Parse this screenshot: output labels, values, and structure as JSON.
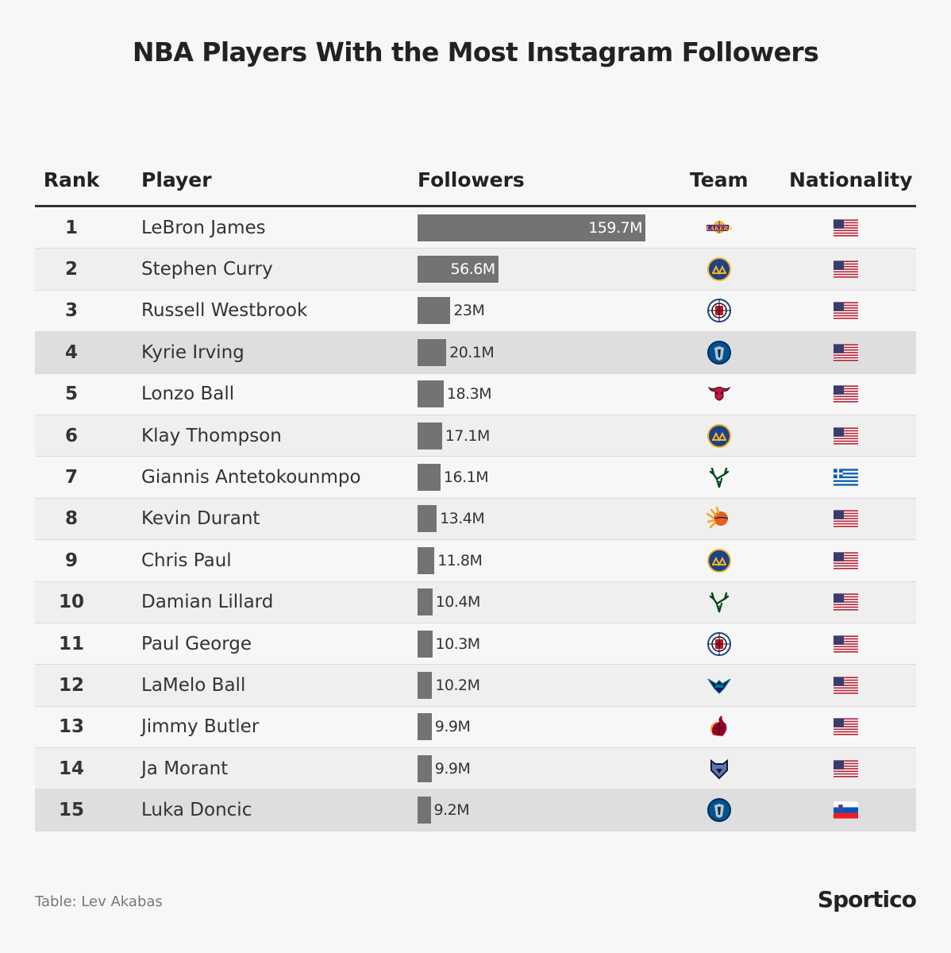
{
  "title": "NBA Players With the Most Instagram Followers",
  "headers": {
    "rank": "Rank",
    "player": "Player",
    "followers": "Followers",
    "team": "Team",
    "nationality": "Nationality"
  },
  "footer": {
    "credit": "Table: Lev Akabas",
    "brand": "Sportico"
  },
  "chart_data": {
    "type": "table",
    "title": "NBA Players With the Most Instagram Followers",
    "columns": [
      "Rank",
      "Player",
      "Followers",
      "Team",
      "Nationality"
    ],
    "unit": "M",
    "max_value": 159.7,
    "rows": [
      {
        "rank": "1",
        "player": "LeBron James",
        "value": 159.7,
        "label": "159.7M",
        "team": "lakers-logo-icon",
        "nationality": "usa-flag-icon",
        "highlight": false
      },
      {
        "rank": "2",
        "player": "Stephen Curry",
        "value": 56.6,
        "label": "56.6M",
        "team": "warriors-logo-icon",
        "nationality": "usa-flag-icon",
        "highlight": false
      },
      {
        "rank": "3",
        "player": "Russell Westbrook",
        "value": 23,
        "label": "23M",
        "team": "clippers-logo-icon",
        "nationality": "usa-flag-icon",
        "highlight": false
      },
      {
        "rank": "4",
        "player": "Kyrie Irving",
        "value": 20.1,
        "label": "20.1M",
        "team": "mavericks-logo-icon",
        "nationality": "usa-flag-icon",
        "highlight": true
      },
      {
        "rank": "5",
        "player": "Lonzo Ball",
        "value": 18.3,
        "label": "18.3M",
        "team": "bulls-logo-icon",
        "nationality": "usa-flag-icon",
        "highlight": false
      },
      {
        "rank": "6",
        "player": "Klay Thompson",
        "value": 17.1,
        "label": "17.1M",
        "team": "warriors-logo-icon",
        "nationality": "usa-flag-icon",
        "highlight": false
      },
      {
        "rank": "7",
        "player": "Giannis Antetokounmpo",
        "value": 16.1,
        "label": "16.1M",
        "team": "bucks-logo-icon",
        "nationality": "greece-flag-icon",
        "highlight": false
      },
      {
        "rank": "8",
        "player": "Kevin Durant",
        "value": 13.4,
        "label": "13.4M",
        "team": "suns-logo-icon",
        "nationality": "usa-flag-icon",
        "highlight": false
      },
      {
        "rank": "9",
        "player": "Chris Paul",
        "value": 11.8,
        "label": "11.8M",
        "team": "warriors-logo-icon",
        "nationality": "usa-flag-icon",
        "highlight": false
      },
      {
        "rank": "10",
        "player": "Damian Lillard",
        "value": 10.4,
        "label": "10.4M",
        "team": "bucks-logo-icon",
        "nationality": "usa-flag-icon",
        "highlight": false
      },
      {
        "rank": "11",
        "player": "Paul George",
        "value": 10.3,
        "label": "10.3M",
        "team": "clippers-logo-icon",
        "nationality": "usa-flag-icon",
        "highlight": false
      },
      {
        "rank": "12",
        "player": "LaMelo Ball",
        "value": 10.2,
        "label": "10.2M",
        "team": "hornets-logo-icon",
        "nationality": "usa-flag-icon",
        "highlight": false
      },
      {
        "rank": "13",
        "player": "Jimmy Butler",
        "value": 9.9,
        "label": "9.9M",
        "team": "heat-logo-icon",
        "nationality": "usa-flag-icon",
        "highlight": false
      },
      {
        "rank": "14",
        "player": "Ja Morant",
        "value": 9.9,
        "label": "9.9M",
        "team": "grizzlies-logo-icon",
        "nationality": "usa-flag-icon",
        "highlight": false
      },
      {
        "rank": "15",
        "player": "Luka Doncic",
        "value": 9.2,
        "label": "9.2M",
        "team": "mavericks-logo-icon",
        "nationality": "slovenia-flag-icon",
        "highlight": true
      }
    ]
  },
  "colors": {
    "background": "#f7f7f7",
    "row_alt": "#efefef",
    "row_highlight": "#dedede",
    "bar": "#737373",
    "text": "#333333"
  }
}
